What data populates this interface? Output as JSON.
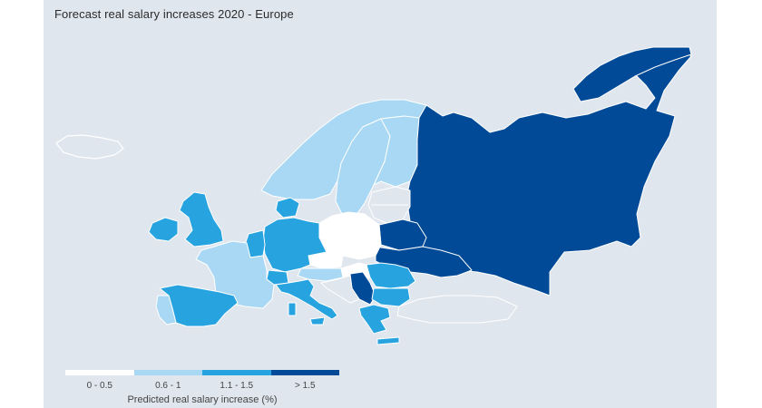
{
  "map": {
    "title": "Forecast real salary increases 2020 - Europe",
    "legend": {
      "title": "Predicted real salary increase (%)",
      "bins": [
        {
          "label": "0 - 0.5",
          "color": "#ffffff"
        },
        {
          "label": "0.6 - 1",
          "color": "#a9d8f4"
        },
        {
          "label": "1.1 - 1.5",
          "color": "#27a3e0"
        },
        {
          "label": "> 1.5",
          "color": "#004a97"
        }
      ]
    },
    "colors": {
      "background": "#dfe6ee",
      "no_data": "#dfe6ee",
      "border": "#ffffff"
    },
    "regions": [
      {
        "name": "Russia",
        "bin": "> 1.5"
      },
      {
        "name": "Ukraine",
        "bin": "> 1.5"
      },
      {
        "name": "Belarus",
        "bin": "> 1.5"
      },
      {
        "name": "Serbia",
        "bin": "> 1.5"
      },
      {
        "name": "Poland",
        "bin": "0 - 0.5"
      },
      {
        "name": "Czech Republic",
        "bin": "0 - 0.5"
      },
      {
        "name": "Hungary",
        "bin": "0 - 0.5"
      },
      {
        "name": "Norway",
        "bin": "0.6 - 1"
      },
      {
        "name": "Sweden",
        "bin": "0.6 - 1"
      },
      {
        "name": "Finland",
        "bin": "0.6 - 1"
      },
      {
        "name": "France",
        "bin": "0.6 - 1"
      },
      {
        "name": "Portugal",
        "bin": "0.6 - 1"
      },
      {
        "name": "Austria",
        "bin": "0.6 - 1"
      },
      {
        "name": "United Kingdom",
        "bin": "1.1 - 1.5"
      },
      {
        "name": "Ireland",
        "bin": "1.1 - 1.5"
      },
      {
        "name": "Germany",
        "bin": "1.1 - 1.5"
      },
      {
        "name": "Denmark",
        "bin": "1.1 - 1.5"
      },
      {
        "name": "Spain",
        "bin": "1.1 - 1.5"
      },
      {
        "name": "Italy",
        "bin": "1.1 - 1.5"
      },
      {
        "name": "Romania",
        "bin": "1.1 - 1.5"
      },
      {
        "name": "Bulgaria",
        "bin": "1.1 - 1.5"
      },
      {
        "name": "Greece",
        "bin": "1.1 - 1.5"
      },
      {
        "name": "Belgium",
        "bin": "1.1 - 1.5"
      },
      {
        "name": "Netherlands",
        "bin": "1.1 - 1.5"
      },
      {
        "name": "Switzerland",
        "bin": "1.1 - 1.5"
      },
      {
        "name": "Iceland",
        "bin": "none"
      },
      {
        "name": "Estonia",
        "bin": "none"
      },
      {
        "name": "Latvia",
        "bin": "none"
      },
      {
        "name": "Lithuania",
        "bin": "none"
      },
      {
        "name": "Turkey",
        "bin": "none"
      }
    ]
  }
}
